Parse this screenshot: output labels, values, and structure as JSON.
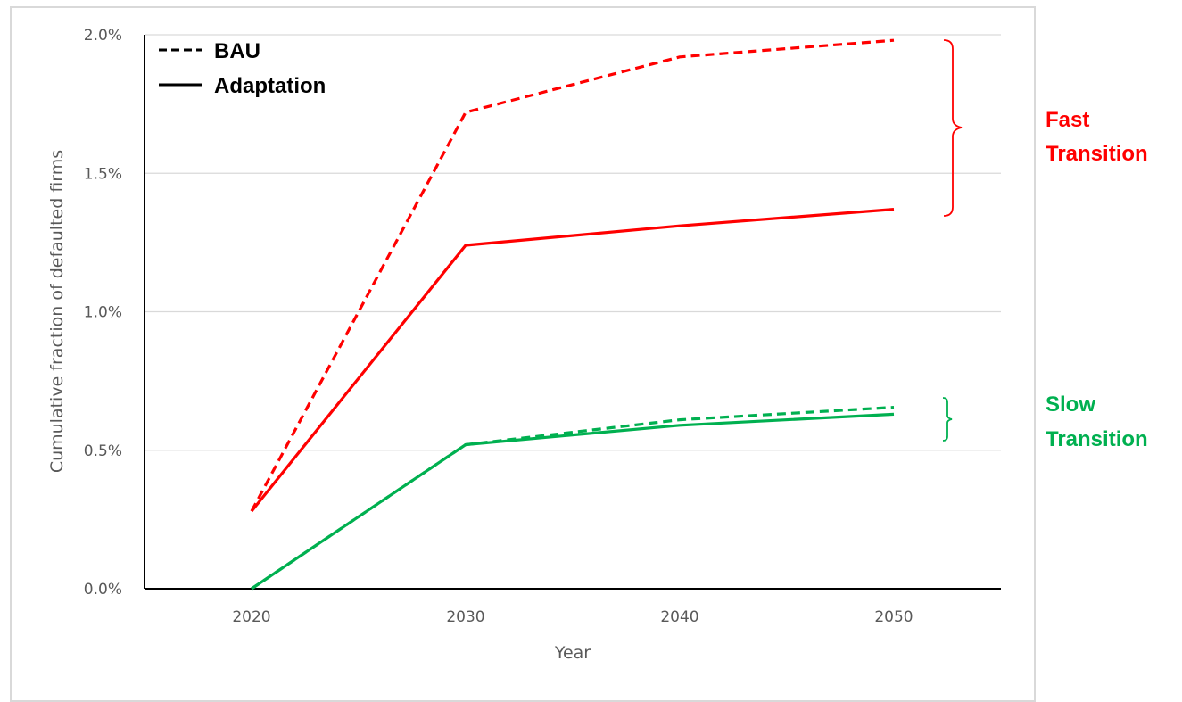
{
  "chart_data": {
    "type": "line",
    "title": "",
    "xlabel": "Year",
    "ylabel": "Cumulative fraction of defaulted firms",
    "x": [
      2020,
      2030,
      2040,
      2050
    ],
    "x_ticks": [
      "2020",
      "2030",
      "2040",
      "2050"
    ],
    "y_ticks": [
      "0.0%",
      "0.5%",
      "1.0%",
      "1.5%",
      "2.0%"
    ],
    "ylim": [
      0,
      2.0
    ],
    "y_unit": "%",
    "grid": true,
    "legend_position": "top-left",
    "legend": [
      {
        "label": "BAU",
        "style": "dashed"
      },
      {
        "label": "Adaptation",
        "style": "solid"
      }
    ],
    "series": [
      {
        "group": "Fast Transition",
        "style": "dashed",
        "color": "#ff0000",
        "values": [
          0.28,
          1.72,
          1.92,
          1.98
        ]
      },
      {
        "group": "Fast Transition",
        "style": "solid",
        "color": "#ff0000",
        "values": [
          0.28,
          1.24,
          1.31,
          1.37
        ]
      },
      {
        "group": "Slow Transition",
        "style": "dashed",
        "color": "#00b050",
        "values": [
          0.0,
          0.52,
          0.61,
          0.655
        ]
      },
      {
        "group": "Slow Transition",
        "style": "solid",
        "color": "#00b050",
        "values": [
          0.0,
          0.52,
          0.59,
          0.63
        ]
      }
    ],
    "annotations": [
      {
        "lines": [
          "Fast",
          "Transition"
        ],
        "color": "#ff0000"
      },
      {
        "lines": [
          "Slow",
          "Transition"
        ],
        "color": "#00b050"
      }
    ]
  }
}
